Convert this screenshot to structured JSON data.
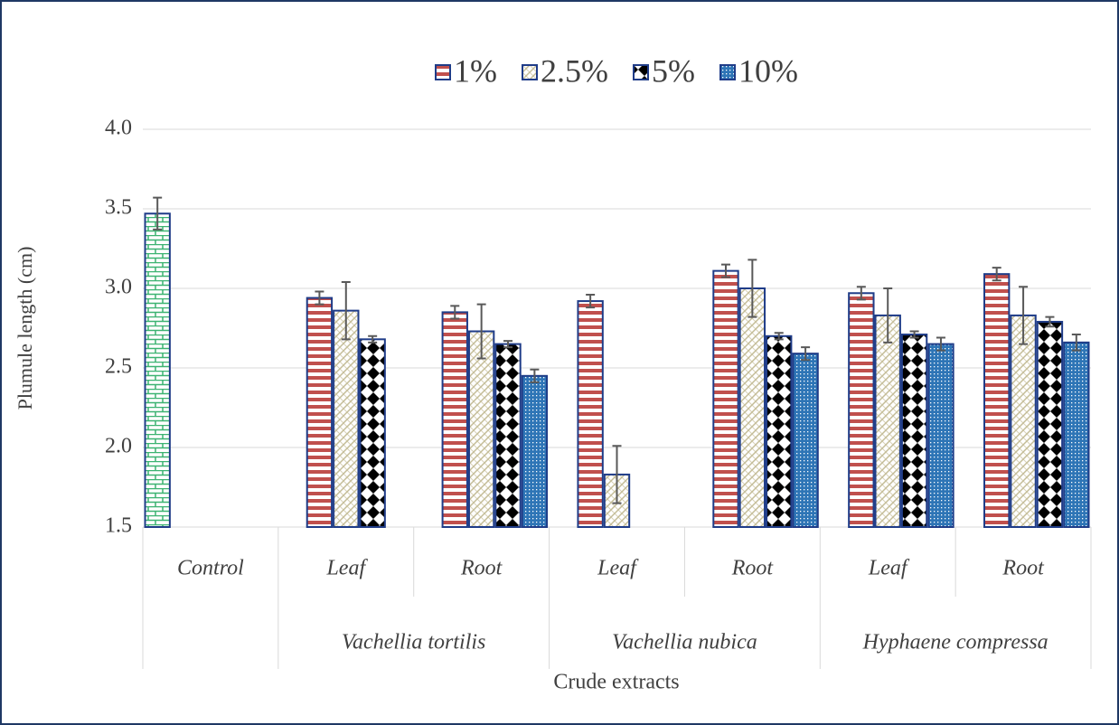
{
  "chart_data": {
    "type": "bar",
    "y_label": "Plumule length (cm)",
    "x_label": "Crude extracts",
    "categories": [
      "Control",
      "Leaf",
      "Root",
      "Leaf",
      "Root",
      "Leaf",
      "Root"
    ],
    "groups": [
      {
        "name": "Vachellia tortilis",
        "categories": [
          1,
          2
        ]
      },
      {
        "name": "Vachellia nubica",
        "categories": [
          3,
          4
        ]
      },
      {
        "name": "Hyphaene compressa",
        "categories": [
          5,
          6
        ]
      }
    ],
    "ylim": [
      1.5,
      4.0
    ],
    "yticks": [
      1.5,
      {
        "value": 2,
        "label": "2.0"
      },
      2.5,
      {
        "value": 3,
        "label": "3.0"
      },
      3.5,
      {
        "value": 4,
        "label": "4.0"
      }
    ],
    "grid": true,
    "legend": "top",
    "series": [
      {
        "color": "#3cb371",
        "pattern": "brick",
        "values": [
          3.47,
          null,
          null,
          null,
          null,
          null,
          null
        ],
        "errors": [
          0.1,
          null,
          null,
          null,
          null,
          null,
          null
        ]
      },
      {
        "name": "1%",
        "color": "#c0504d",
        "pattern": "stripes",
        "values": [
          null,
          2.94,
          2.85,
          2.92,
          3.11,
          2.97,
          3.09
        ],
        "errors": [
          null,
          0.04,
          0.04,
          0.04,
          0.04,
          0.04,
          0.04
        ]
      },
      {
        "name": "2.5%",
        "color": "#c4bd97",
        "pattern": "hatch",
        "values": [
          null,
          2.86,
          2.73,
          1.83,
          3.0,
          2.83,
          2.83
        ],
        "errors": [
          null,
          0.18,
          0.17,
          0.18,
          0.18,
          0.17,
          0.18
        ]
      },
      {
        "name": "5%",
        "color": "#000000",
        "pattern": "diamonds",
        "values": [
          null,
          2.68,
          2.65,
          null,
          2.7,
          2.71,
          2.79
        ],
        "errors": [
          null,
          0.02,
          0.02,
          null,
          0.02,
          0.02,
          0.03
        ]
      },
      {
        "name": "10%",
        "color": "#2e75b6",
        "pattern": "dots",
        "values": [
          null,
          null,
          2.45,
          null,
          2.59,
          2.65,
          2.66
        ],
        "errors": [
          null,
          null,
          0.04,
          null,
          0.04,
          0.04,
          0.05
        ]
      }
    ]
  }
}
